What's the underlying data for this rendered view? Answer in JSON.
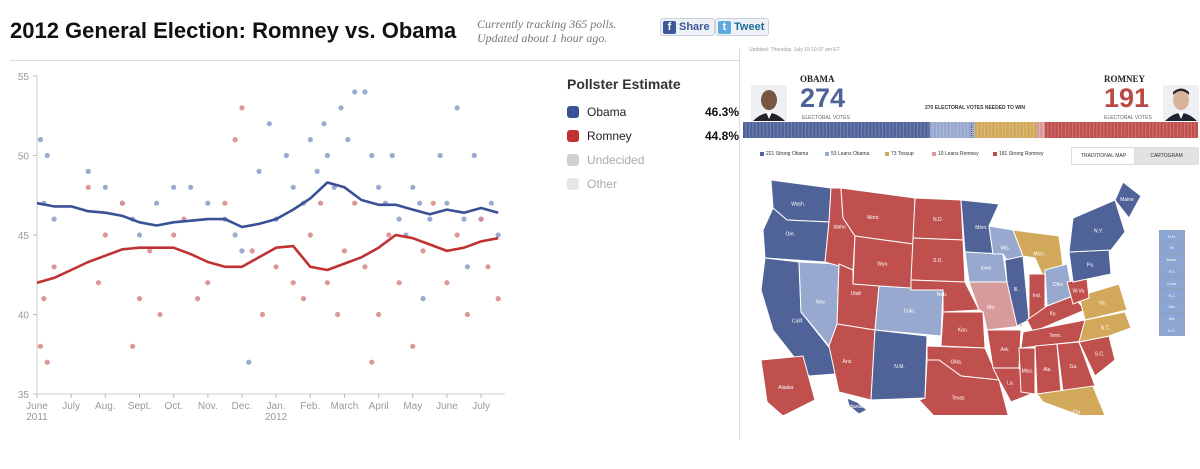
{
  "header": {
    "title": "2012 General Election: Romney vs. Obama",
    "tracking_line1": "Currently tracking 365 polls.",
    "tracking_line2": "Updated about 1 hour ago.",
    "share_label": "Share",
    "tweet_label": "Tweet"
  },
  "legend": {
    "title": "Pollster Estimate",
    "items": [
      {
        "label": "Obama",
        "value": "46.3%",
        "color": "#3b5196"
      },
      {
        "label": "Romney",
        "value": "44.8%",
        "color": "#c03231"
      },
      {
        "label": "Undecided",
        "value": "",
        "color": "#d0d0d0"
      },
      {
        "label": "Other",
        "value": "",
        "color": "#e6e6e6"
      }
    ]
  },
  "chart_data": {
    "type": "scatter",
    "title": "",
    "xlabel": "",
    "ylabel": "",
    "ylim": [
      35,
      55
    ],
    "yticks": [
      35,
      40,
      45,
      50,
      55
    ],
    "xticks": [
      "June",
      "July",
      "Aug.",
      "Sept.",
      "Oct.",
      "Nov.",
      "Dec.",
      "Jan.",
      "Feb.",
      "March",
      "April",
      "May",
      "June",
      "July"
    ],
    "xtick_sublabels": [
      "2011",
      "",
      "",
      "",
      "",
      "",
      "",
      "2012",
      "",
      "",
      "",
      "",
      "",
      ""
    ],
    "x_month_index_range": [
      0,
      13.7
    ],
    "series": [
      {
        "name": "Obama",
        "color": "#3b5196",
        "trend": [
          [
            0,
            47.0
          ],
          [
            0.5,
            46.8
          ],
          [
            1,
            46.8
          ],
          [
            1.5,
            46.5
          ],
          [
            2,
            46.4
          ],
          [
            2.5,
            46.2
          ],
          [
            3,
            45.8
          ],
          [
            3.5,
            45.6
          ],
          [
            4,
            45.8
          ],
          [
            4.5,
            45.9
          ],
          [
            5,
            46.0
          ],
          [
            5.5,
            46.0
          ],
          [
            6,
            45.5
          ],
          [
            6.5,
            45.7
          ],
          [
            7,
            46.0
          ],
          [
            7.5,
            46.6
          ],
          [
            8,
            47.3
          ],
          [
            8.5,
            48.3
          ],
          [
            9,
            48.0
          ],
          [
            9.5,
            47.2
          ],
          [
            10,
            46.9
          ],
          [
            10.5,
            46.9
          ],
          [
            11,
            46.6
          ],
          [
            11.5,
            46.3
          ],
          [
            12,
            46.6
          ],
          [
            12.5,
            46.4
          ],
          [
            13,
            46.7
          ],
          [
            13.5,
            46.4
          ]
        ],
        "polls": [
          [
            0.1,
            51
          ],
          [
            0.3,
            50
          ],
          [
            0.2,
            47
          ],
          [
            0.5,
            46
          ],
          [
            1.5,
            49
          ],
          [
            2,
            48
          ],
          [
            2.5,
            47
          ],
          [
            2.8,
            46
          ],
          [
            3,
            45
          ],
          [
            3.5,
            47
          ],
          [
            4,
            48
          ],
          [
            4.5,
            48
          ],
          [
            5,
            47
          ],
          [
            5.5,
            46
          ],
          [
            5.8,
            45
          ],
          [
            6,
            44
          ],
          [
            6.2,
            37
          ],
          [
            6.5,
            49
          ],
          [
            6.8,
            52
          ],
          [
            7,
            46
          ],
          [
            7.3,
            50
          ],
          [
            7.5,
            48
          ],
          [
            7.8,
            47
          ],
          [
            8,
            51
          ],
          [
            8.2,
            49
          ],
          [
            8.4,
            52
          ],
          [
            8.5,
            50
          ],
          [
            8.7,
            48
          ],
          [
            8.9,
            53
          ],
          [
            9.1,
            51
          ],
          [
            9.3,
            54
          ],
          [
            9.6,
            54
          ],
          [
            9.8,
            50
          ],
          [
            10,
            48
          ],
          [
            10.2,
            47
          ],
          [
            10.4,
            50
          ],
          [
            10.6,
            46
          ],
          [
            10.8,
            45
          ],
          [
            11,
            48
          ],
          [
            11.2,
            47
          ],
          [
            11.5,
            46
          ],
          [
            11.8,
            50
          ],
          [
            12,
            47
          ],
          [
            12.3,
            53
          ],
          [
            12.5,
            46
          ],
          [
            12.8,
            50
          ],
          [
            13,
            46
          ],
          [
            13.3,
            47
          ],
          [
            13.5,
            45
          ],
          [
            11.3,
            41
          ],
          [
            12.6,
            43
          ]
        ]
      },
      {
        "name": "Romney",
        "color": "#c03231",
        "trend": [
          [
            0,
            42.0
          ],
          [
            0.5,
            42.3
          ],
          [
            1,
            42.8
          ],
          [
            1.5,
            43.3
          ],
          [
            2,
            43.7
          ],
          [
            2.5,
            44.1
          ],
          [
            3,
            44.2
          ],
          [
            3.5,
            44.2
          ],
          [
            4,
            44.2
          ],
          [
            4.5,
            43.8
          ],
          [
            5,
            43.3
          ],
          [
            5.5,
            43.0
          ],
          [
            6,
            43.0
          ],
          [
            6.5,
            43.6
          ],
          [
            7,
            44.2
          ],
          [
            7.5,
            44.3
          ],
          [
            8,
            43.0
          ],
          [
            8.5,
            42.8
          ],
          [
            9,
            43.2
          ],
          [
            9.5,
            43.6
          ],
          [
            10,
            44.2
          ],
          [
            10.5,
            45.0
          ],
          [
            11,
            44.8
          ],
          [
            11.5,
            44.4
          ],
          [
            12,
            44.0
          ],
          [
            12.5,
            44.2
          ],
          [
            13,
            44.6
          ],
          [
            13.5,
            44.8
          ]
        ],
        "polls": [
          [
            0.1,
            38
          ],
          [
            0.3,
            37
          ],
          [
            0.2,
            41
          ],
          [
            0.5,
            43
          ],
          [
            1.5,
            48
          ],
          [
            1.8,
            42
          ],
          [
            2,
            45
          ],
          [
            2.5,
            47
          ],
          [
            2.8,
            38
          ],
          [
            3,
            41
          ],
          [
            3.3,
            44
          ],
          [
            3.6,
            40
          ],
          [
            4,
            45
          ],
          [
            4.3,
            46
          ],
          [
            4.7,
            41
          ],
          [
            5,
            42
          ],
          [
            5.5,
            47
          ],
          [
            5.8,
            51
          ],
          [
            6,
            53
          ],
          [
            6.3,
            44
          ],
          [
            6.6,
            40
          ],
          [
            7,
            43
          ],
          [
            7.5,
            42
          ],
          [
            7.8,
            41
          ],
          [
            8,
            45
          ],
          [
            8.3,
            47
          ],
          [
            8.5,
            42
          ],
          [
            8.8,
            40
          ],
          [
            9,
            44
          ],
          [
            9.3,
            47
          ],
          [
            9.6,
            43
          ],
          [
            9.8,
            37
          ],
          [
            10,
            40
          ],
          [
            10.3,
            45
          ],
          [
            10.6,
            42
          ],
          [
            11,
            38
          ],
          [
            11.3,
            44
          ],
          [
            11.6,
            47
          ],
          [
            12,
            42
          ],
          [
            12.3,
            45
          ],
          [
            12.6,
            40
          ],
          [
            13,
            46
          ],
          [
            13.2,
            43
          ],
          [
            13.5,
            41
          ]
        ]
      }
    ]
  },
  "map_panel": {
    "updated": "Updated: Thursday, July 19 10:37 am ET",
    "obama": {
      "name": "OBAMA",
      "votes": "274",
      "label": "ELECTORAL VOTES",
      "color": "#4f6399"
    },
    "romney": {
      "name": "ROMNEY",
      "votes": "191",
      "label": "ELECTORAL VOTES",
      "color": "#b94a48"
    },
    "needed": "270 ELECTORAL VOTES NEEDED TO WIN",
    "categories": [
      {
        "label": "221 Strong Obama",
        "count": 221,
        "color": "#4f6399"
      },
      {
        "label": "53 Leans Obama",
        "count": 53,
        "color": "#98a9d0"
      },
      {
        "label": "73 Tossup",
        "count": 73,
        "color": "#d2a95a"
      },
      {
        "label": "10 Leans Romney",
        "count": 10,
        "color": "#d79b9b"
      },
      {
        "label": "181 Strong Romney",
        "count": 181,
        "color": "#c0504d"
      }
    ],
    "toggle": {
      "traditional": "TRADITIONAL MAP",
      "cartogram": "CARTOGRAM"
    },
    "states": [
      {
        "abbr": "Wash.",
        "color": "#4f6399"
      },
      {
        "abbr": "Ore.",
        "color": "#4f6399"
      },
      {
        "abbr": "Calif.",
        "color": "#4f6399"
      },
      {
        "abbr": "Nev.",
        "color": "#98a9d0"
      },
      {
        "abbr": "Idaho",
        "color": "#c0504d"
      },
      {
        "abbr": "Mont.",
        "color": "#c0504d"
      },
      {
        "abbr": "Wyo.",
        "color": "#c0504d"
      },
      {
        "abbr": "Utah",
        "color": "#c0504d"
      },
      {
        "abbr": "Colo.",
        "color": "#98a9d0"
      },
      {
        "abbr": "Ariz.",
        "color": "#c0504d"
      },
      {
        "abbr": "N.M.",
        "color": "#4f6399"
      },
      {
        "abbr": "N.D.",
        "color": "#c0504d"
      },
      {
        "abbr": "S.D.",
        "color": "#c0504d"
      },
      {
        "abbr": "Neb.",
        "color": "#c0504d"
      },
      {
        "abbr": "Kan.",
        "color": "#c0504d"
      },
      {
        "abbr": "Okla.",
        "color": "#c0504d"
      },
      {
        "abbr": "Texas",
        "color": "#c0504d"
      },
      {
        "abbr": "Minn.",
        "color": "#4f6399"
      },
      {
        "abbr": "Iowa",
        "color": "#98a9d0"
      },
      {
        "abbr": "Mo.",
        "color": "#d79b9b"
      },
      {
        "abbr": "Ark.",
        "color": "#c0504d"
      },
      {
        "abbr": "La.",
        "color": "#c0504d"
      },
      {
        "abbr": "Wis.",
        "color": "#98a9d0"
      },
      {
        "abbr": "Ill.",
        "color": "#4f6399"
      },
      {
        "abbr": "Mich.",
        "color": "#d2a95a"
      },
      {
        "abbr": "Ind.",
        "color": "#c0504d"
      },
      {
        "abbr": "Ohio",
        "color": "#98a9d0"
      },
      {
        "abbr": "Ky.",
        "color": "#c0504d"
      },
      {
        "abbr": "Tenn.",
        "color": "#c0504d"
      },
      {
        "abbr": "Miss.",
        "color": "#c0504d"
      },
      {
        "abbr": "Ala.",
        "color": "#c0504d"
      },
      {
        "abbr": "Ga.",
        "color": "#c0504d"
      },
      {
        "abbr": "Fla.",
        "color": "#d2a95a"
      },
      {
        "abbr": "S.C.",
        "color": "#c0504d"
      },
      {
        "abbr": "N.C.",
        "color": "#d2a95a"
      },
      {
        "abbr": "Va.",
        "color": "#d2a95a"
      },
      {
        "abbr": "W.Va.",
        "color": "#c0504d"
      },
      {
        "abbr": "Pa.",
        "color": "#4f6399"
      },
      {
        "abbr": "N.Y.",
        "color": "#4f6399"
      },
      {
        "abbr": "Maine",
        "color": "#4f6399"
      },
      {
        "abbr": "Alaska",
        "color": "#c0504d"
      },
      {
        "abbr": "Hawaii",
        "color": "#4f6399"
      }
    ],
    "small_states": [
      "N.H.",
      "Vt.",
      "Mass.",
      "R.I.",
      "Conn.",
      "N.J.",
      "Del.",
      "Md.",
      "D.C."
    ]
  }
}
